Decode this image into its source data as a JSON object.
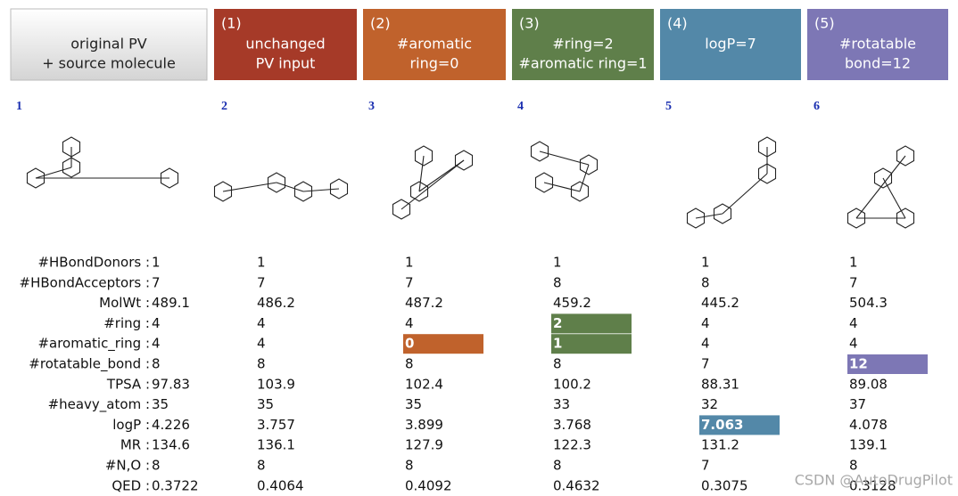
{
  "headers": [
    {
      "lines": [
        "original PV",
        "+ source molecule"
      ],
      "color": "#e6e6e6"
    },
    {
      "tag": "(1)",
      "lines": [
        "unchanged",
        "PV input"
      ],
      "color": "#a63a28"
    },
    {
      "tag": "(2)",
      "lines": [
        "#aromatic",
        "ring=0"
      ],
      "color": "#c0622c"
    },
    {
      "tag": "(3)",
      "lines": [
        "#ring=2",
        "#aromatic ring=1"
      ],
      "color": "#5f7f4a"
    },
    {
      "tag": "(4)",
      "lines": [
        "logP=7"
      ],
      "color": "#5388a8"
    },
    {
      "tag": "(5)",
      "lines": [
        "#rotatable",
        "bond=12"
      ],
      "color": "#7d77b5"
    }
  ],
  "molecules": [
    "1",
    "2",
    "3",
    "4",
    "5",
    "6"
  ],
  "properties": [
    {
      "label": "#HBondDonors :",
      "values": [
        1,
        1,
        1,
        1,
        1,
        1
      ]
    },
    {
      "label": "#HBondAcceptors :",
      "values": [
        7,
        7,
        7,
        8,
        8,
        7
      ]
    },
    {
      "label": "MolWt :",
      "values": [
        489.1,
        486.2,
        487.2,
        459.2,
        445.2,
        504.3
      ]
    },
    {
      "label": "#ring :",
      "values": [
        4,
        4,
        4,
        {
          "value": 2,
          "highlight": "#5f7f4a"
        },
        4,
        4
      ]
    },
    {
      "label": "#aromatic_ring :",
      "values": [
        4,
        4,
        {
          "value": 0,
          "highlight": "#c0622c"
        },
        {
          "value": 1,
          "highlight": "#5f7f4a"
        },
        4,
        4
      ]
    },
    {
      "label": "#rotatable_bond :",
      "values": [
        8,
        8,
        8,
        8,
        7,
        {
          "value": 12,
          "highlight": "#7d77b5"
        }
      ]
    },
    {
      "label": "TPSA :",
      "values": [
        97.83,
        103.9,
        102.4,
        100.2,
        88.31,
        89.08
      ]
    },
    {
      "label": "#heavy_atom :",
      "values": [
        35,
        35,
        35,
        33,
        32,
        37
      ]
    },
    {
      "label": "logP :",
      "values": [
        4.226,
        3.757,
        3.899,
        3.768,
        {
          "value": 7.063,
          "highlight": "#5388a8"
        },
        4.078
      ]
    },
    {
      "label": "MR :",
      "values": [
        134.6,
        136.1,
        127.9,
        122.3,
        131.2,
        139.1
      ]
    },
    {
      "label": "#N,O :",
      "values": [
        8,
        8,
        8,
        8,
        7,
        8
      ]
    },
    {
      "label": "QED :",
      "values": [
        0.3722,
        0.4064,
        0.4092,
        0.4632,
        0.3075,
        0.3128
      ]
    }
  ],
  "watermark": "CSDN @AutoDrugPilot"
}
